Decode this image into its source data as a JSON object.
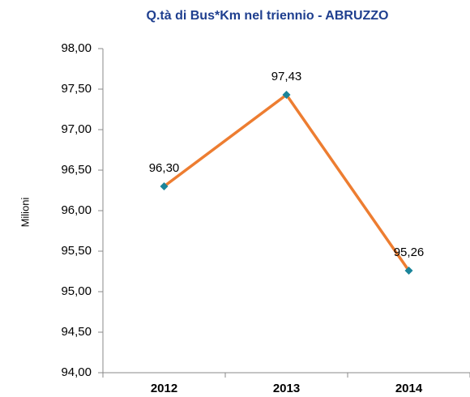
{
  "chart_data": {
    "type": "line",
    "title": "Q.tà di Bus*Km nel triennio - ABRUZZO",
    "y_label": "Milioni",
    "categories": [
      "2012",
      "2013",
      "2014"
    ],
    "values": [
      96.3,
      97.43,
      95.26
    ],
    "value_labels": [
      "96,30",
      "97,43",
      "95,26"
    ],
    "color": "#ed7d31",
    "marker_color": "#1a849a",
    "ylim": [
      94,
      98
    ],
    "yticks": [
      {
        "value": 94,
        "label": "94,00"
      },
      {
        "value": 94.5,
        "label": "94,50"
      },
      {
        "value": 95,
        "label": "95,00"
      },
      {
        "value": 95.5,
        "label": "95,50"
      },
      {
        "value": 96,
        "label": "96,00"
      },
      {
        "value": 96.5,
        "label": "96,50"
      },
      {
        "value": 97,
        "label": "97,00"
      },
      {
        "value": 97.5,
        "label": "97,50"
      },
      {
        "value": 98,
        "label": "98,00"
      }
    ],
    "grid": false
  }
}
